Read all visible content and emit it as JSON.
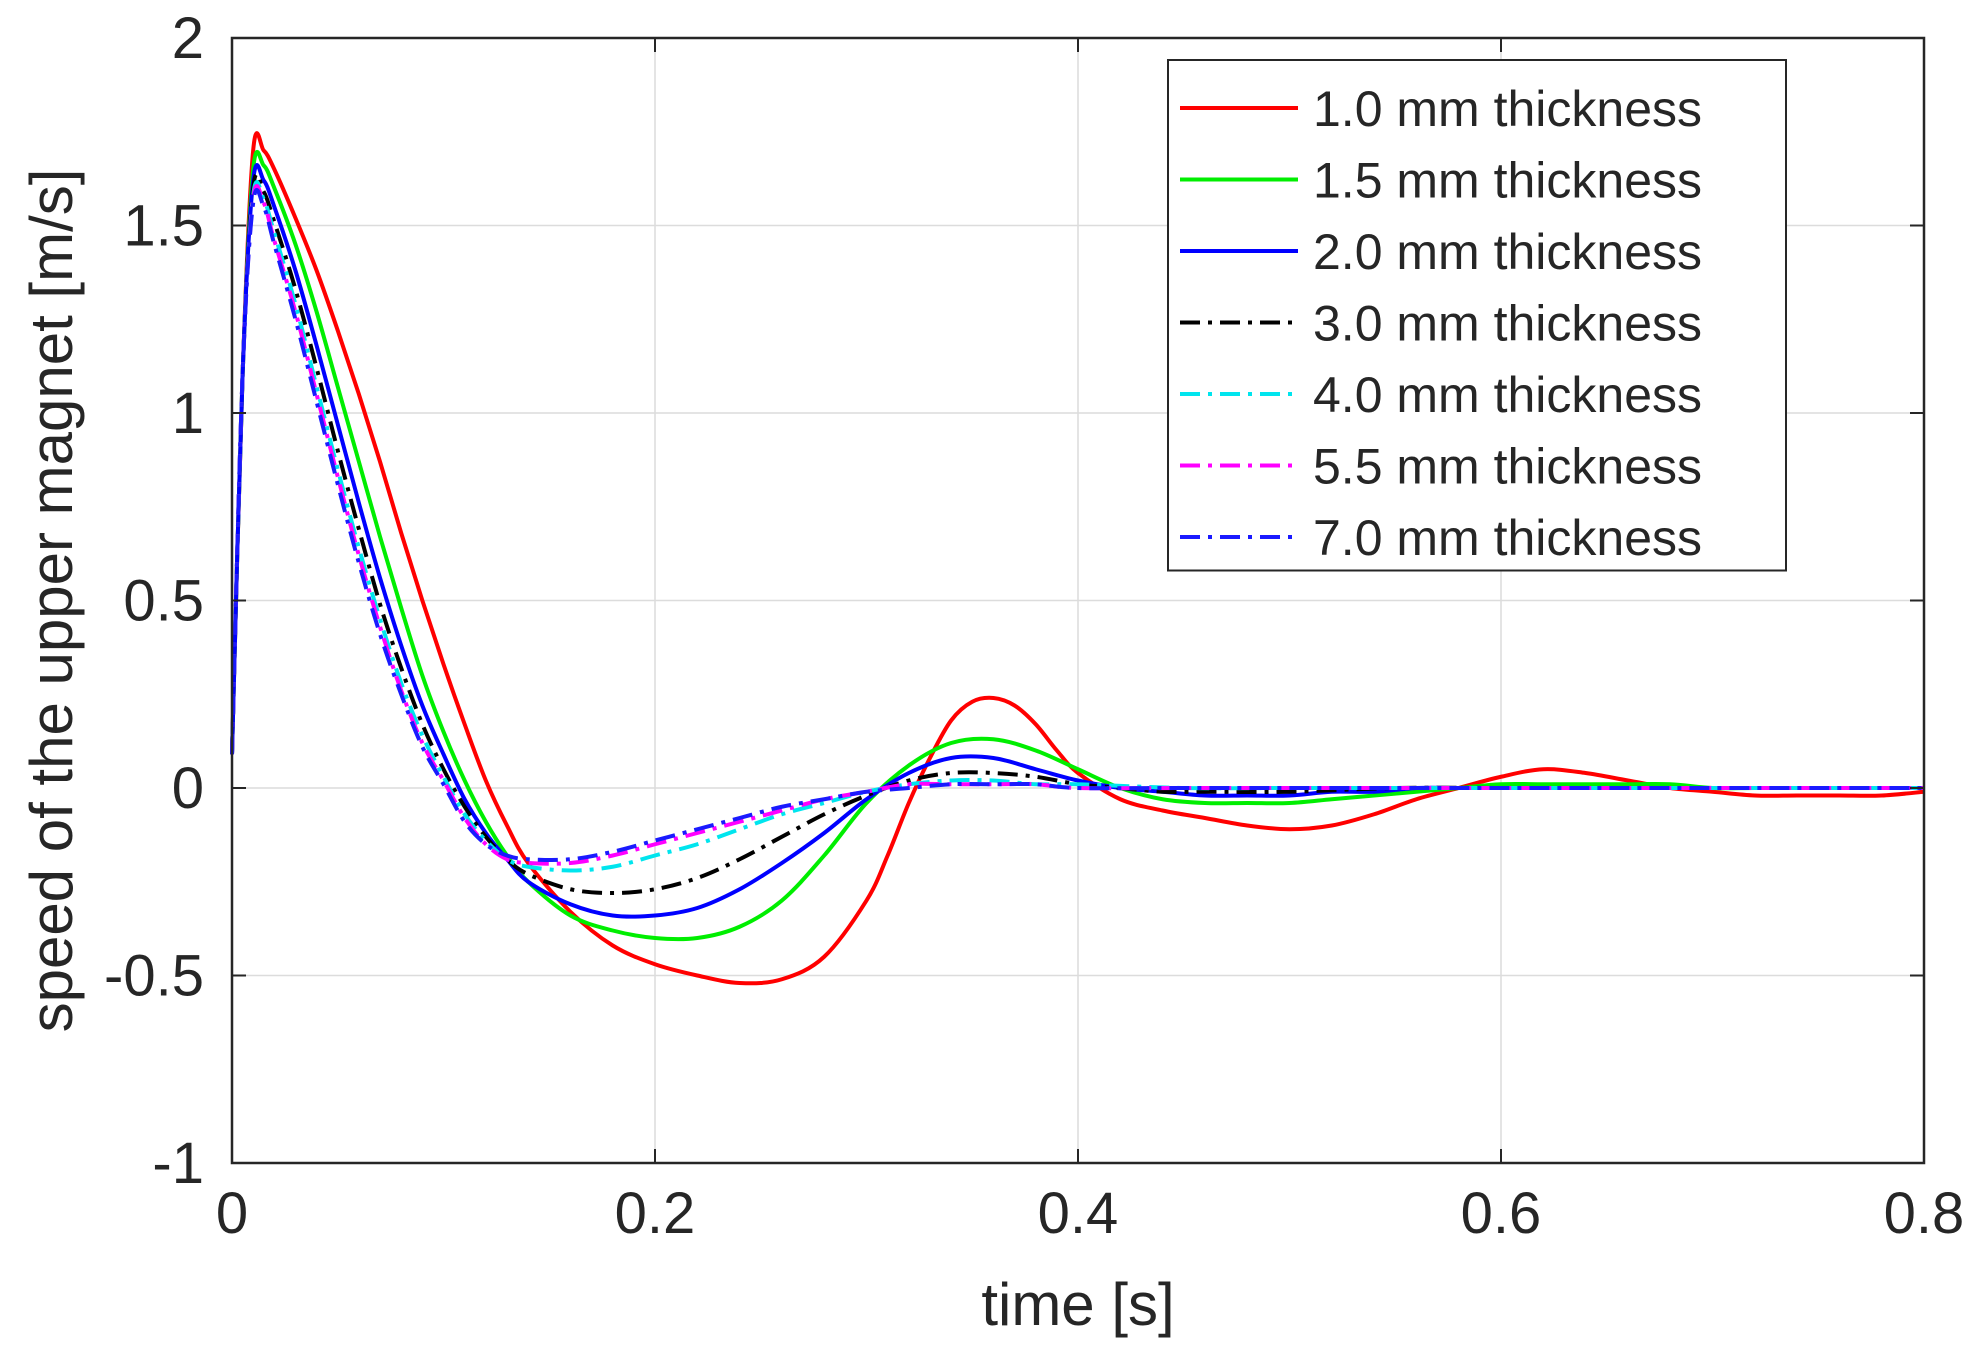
{
  "chart_data": {
    "type": "line",
    "title": "",
    "xlabel": "time [s]",
    "ylabel": "speed of the upper magnet [m/s]",
    "xlim": [
      0,
      0.8
    ],
    "ylim": [
      -1,
      2
    ],
    "xticks": [
      0,
      0.2,
      0.4,
      0.6,
      0.8
    ],
    "xtick_labels": [
      "0",
      "0.2",
      "0.4",
      "0.6",
      "0.8"
    ],
    "yticks": [
      -1,
      -0.5,
      0,
      0.5,
      1,
      1.5,
      2
    ],
    "ytick_labels": [
      "-1",
      "-0.5",
      "0",
      "0.5",
      "1",
      "1.5",
      "2"
    ],
    "grid": true,
    "legend_position": "top-right",
    "series": [
      {
        "name": "1.0 mm thickness",
        "color": "#ff0000",
        "style": "solid",
        "x": [
          0,
          0.005,
          0.01,
          0.015,
          0.02,
          0.03,
          0.04,
          0.05,
          0.06,
          0.07,
          0.08,
          0.09,
          0.1,
          0.11,
          0.12,
          0.13,
          0.14,
          0.16,
          0.18,
          0.2,
          0.22,
          0.24,
          0.26,
          0.28,
          0.3,
          0.31,
          0.32,
          0.33,
          0.34,
          0.35,
          0.36,
          0.37,
          0.38,
          0.39,
          0.4,
          0.42,
          0.44,
          0.46,
          0.48,
          0.5,
          0.52,
          0.54,
          0.56,
          0.58,
          0.6,
          0.62,
          0.64,
          0.66,
          0.68,
          0.7,
          0.72,
          0.74,
          0.76,
          0.78,
          0.8
        ],
        "y": [
          0.09,
          1.1,
          1.7,
          1.7,
          1.65,
          1.52,
          1.38,
          1.22,
          1.05,
          0.87,
          0.68,
          0.5,
          0.33,
          0.17,
          0.02,
          -0.1,
          -0.2,
          -0.33,
          -0.42,
          -0.47,
          -0.5,
          -0.52,
          -0.51,
          -0.45,
          -0.3,
          -0.18,
          -0.04,
          0.08,
          0.18,
          0.23,
          0.24,
          0.22,
          0.17,
          0.1,
          0.04,
          -0.03,
          -0.06,
          -0.08,
          -0.1,
          -0.11,
          -0.1,
          -0.07,
          -0.03,
          0.0,
          0.03,
          0.05,
          0.04,
          0.02,
          0.0,
          -0.01,
          -0.02,
          -0.02,
          -0.02,
          -0.02,
          -0.01
        ]
      },
      {
        "name": "1.5 mm thickness",
        "color": "#00ee00",
        "style": "solid",
        "x": [
          0,
          0.005,
          0.01,
          0.015,
          0.02,
          0.03,
          0.04,
          0.05,
          0.06,
          0.07,
          0.08,
          0.09,
          0.1,
          0.11,
          0.12,
          0.13,
          0.14,
          0.16,
          0.18,
          0.2,
          0.22,
          0.24,
          0.26,
          0.28,
          0.3,
          0.32,
          0.34,
          0.36,
          0.38,
          0.4,
          0.42,
          0.44,
          0.46,
          0.48,
          0.5,
          0.52,
          0.54,
          0.56,
          0.58,
          0.6,
          0.62,
          0.64,
          0.66,
          0.68,
          0.7,
          0.72,
          0.74,
          0.76,
          0.78,
          0.8
        ],
        "y": [
          0.09,
          1.1,
          1.65,
          1.66,
          1.6,
          1.45,
          1.27,
          1.07,
          0.87,
          0.67,
          0.48,
          0.3,
          0.15,
          0.02,
          -0.09,
          -0.18,
          -0.25,
          -0.34,
          -0.38,
          -0.4,
          -0.4,
          -0.37,
          -0.3,
          -0.18,
          -0.04,
          0.06,
          0.12,
          0.13,
          0.1,
          0.05,
          0.0,
          -0.03,
          -0.04,
          -0.04,
          -0.04,
          -0.03,
          -0.02,
          -0.01,
          0.0,
          0.01,
          0.01,
          0.01,
          0.01,
          0.01,
          0.0,
          0.0,
          0.0,
          0.0,
          0.0,
          0.0
        ]
      },
      {
        "name": "2.0 mm thickness",
        "color": "#0000ff",
        "style": "solid",
        "x": [
          0,
          0.005,
          0.01,
          0.015,
          0.02,
          0.03,
          0.04,
          0.05,
          0.06,
          0.07,
          0.08,
          0.09,
          0.1,
          0.11,
          0.12,
          0.13,
          0.14,
          0.16,
          0.18,
          0.2,
          0.22,
          0.24,
          0.26,
          0.28,
          0.3,
          0.32,
          0.34,
          0.36,
          0.38,
          0.4,
          0.42,
          0.44,
          0.46,
          0.48,
          0.5,
          0.52,
          0.54,
          0.56,
          0.58,
          0.6,
          0.62,
          0.64,
          0.66,
          0.68,
          0.7,
          0.72,
          0.74,
          0.76,
          0.78,
          0.8
        ],
        "y": [
          0.09,
          1.1,
          1.62,
          1.62,
          1.55,
          1.38,
          1.18,
          0.97,
          0.76,
          0.56,
          0.38,
          0.22,
          0.09,
          -0.03,
          -0.12,
          -0.19,
          -0.25,
          -0.31,
          -0.34,
          -0.34,
          -0.32,
          -0.27,
          -0.2,
          -0.12,
          -0.03,
          0.04,
          0.08,
          0.08,
          0.05,
          0.02,
          0.0,
          -0.01,
          -0.02,
          -0.02,
          -0.02,
          -0.01,
          -0.01,
          0.0,
          0.0,
          0.0,
          0.0,
          0.0,
          0.0,
          0.0,
          0.0,
          0.0,
          0.0,
          0.0,
          0.0,
          0.0
        ]
      },
      {
        "name": "3.0 mm thickness",
        "color": "#000000",
        "style": "dashdot",
        "x": [
          0,
          0.005,
          0.01,
          0.015,
          0.02,
          0.03,
          0.04,
          0.05,
          0.06,
          0.07,
          0.08,
          0.09,
          0.1,
          0.11,
          0.12,
          0.13,
          0.14,
          0.16,
          0.18,
          0.2,
          0.22,
          0.24,
          0.26,
          0.28,
          0.3,
          0.32,
          0.34,
          0.36,
          0.38,
          0.4,
          0.42,
          0.44,
          0.46,
          0.5,
          0.55,
          0.6,
          0.65,
          0.7,
          0.75,
          0.8
        ],
        "y": [
          0.09,
          1.1,
          1.6,
          1.59,
          1.51,
          1.33,
          1.12,
          0.9,
          0.69,
          0.49,
          0.32,
          0.17,
          0.05,
          -0.05,
          -0.13,
          -0.19,
          -0.23,
          -0.27,
          -0.28,
          -0.27,
          -0.24,
          -0.19,
          -0.13,
          -0.07,
          -0.02,
          0.02,
          0.04,
          0.04,
          0.03,
          0.01,
          0.0,
          -0.01,
          -0.01,
          -0.01,
          0.0,
          0.0,
          0.0,
          0.0,
          0.0,
          0.0
        ]
      },
      {
        "name": "4.0 mm thickness",
        "color": "#00e5ee",
        "style": "dashdot",
        "x": [
          0,
          0.005,
          0.01,
          0.015,
          0.02,
          0.03,
          0.04,
          0.05,
          0.06,
          0.07,
          0.08,
          0.09,
          0.1,
          0.11,
          0.12,
          0.13,
          0.14,
          0.16,
          0.18,
          0.2,
          0.22,
          0.24,
          0.26,
          0.28,
          0.3,
          0.32,
          0.34,
          0.36,
          0.38,
          0.4,
          0.45,
          0.5,
          0.55,
          0.6,
          0.65,
          0.7,
          0.75,
          0.8
        ],
        "y": [
          0.09,
          1.1,
          1.58,
          1.57,
          1.48,
          1.29,
          1.07,
          0.85,
          0.64,
          0.45,
          0.28,
          0.14,
          0.03,
          -0.07,
          -0.14,
          -0.19,
          -0.21,
          -0.22,
          -0.21,
          -0.18,
          -0.15,
          -0.11,
          -0.07,
          -0.04,
          -0.01,
          0.01,
          0.02,
          0.02,
          0.01,
          0.01,
          0.0,
          0.0,
          0.0,
          0.0,
          0.0,
          0.0,
          0.0,
          0.0
        ]
      },
      {
        "name": "5.5 mm thickness",
        "color": "#ff00ff",
        "style": "dashdot",
        "x": [
          0,
          0.005,
          0.01,
          0.015,
          0.02,
          0.03,
          0.04,
          0.05,
          0.06,
          0.07,
          0.08,
          0.09,
          0.1,
          0.11,
          0.12,
          0.13,
          0.14,
          0.16,
          0.18,
          0.2,
          0.22,
          0.24,
          0.26,
          0.28,
          0.3,
          0.32,
          0.34,
          0.36,
          0.38,
          0.4,
          0.45,
          0.5,
          0.55,
          0.6,
          0.65,
          0.7,
          0.75,
          0.8
        ],
        "y": [
          0.09,
          1.1,
          1.57,
          1.56,
          1.46,
          1.27,
          1.05,
          0.83,
          0.62,
          0.43,
          0.26,
          0.12,
          0.02,
          -0.08,
          -0.15,
          -0.19,
          -0.2,
          -0.2,
          -0.18,
          -0.15,
          -0.12,
          -0.09,
          -0.06,
          -0.03,
          -0.01,
          0.01,
          0.01,
          0.01,
          0.01,
          0.0,
          0.0,
          0.0,
          0.0,
          0.0,
          0.0,
          0.0,
          0.0,
          0.0
        ]
      },
      {
        "name": "7.0 mm thickness",
        "color": "#1a1aff",
        "style": "dashdot",
        "x": [
          0,
          0.005,
          0.01,
          0.015,
          0.02,
          0.03,
          0.04,
          0.05,
          0.06,
          0.07,
          0.08,
          0.09,
          0.1,
          0.11,
          0.12,
          0.13,
          0.14,
          0.16,
          0.18,
          0.2,
          0.22,
          0.24,
          0.26,
          0.28,
          0.3,
          0.32,
          0.34,
          0.36,
          0.38,
          0.4,
          0.45,
          0.5,
          0.55,
          0.6,
          0.65,
          0.7,
          0.75,
          0.8
        ],
        "y": [
          0.09,
          1.1,
          1.56,
          1.55,
          1.45,
          1.25,
          1.03,
          0.81,
          0.6,
          0.41,
          0.25,
          0.11,
          0.01,
          -0.09,
          -0.15,
          -0.18,
          -0.19,
          -0.19,
          -0.17,
          -0.14,
          -0.11,
          -0.08,
          -0.05,
          -0.03,
          -0.01,
          0.0,
          0.01,
          0.01,
          0.01,
          0.0,
          0.0,
          0.0,
          0.0,
          0.0,
          0.0,
          0.0,
          0.0,
          0.0
        ]
      }
    ]
  }
}
